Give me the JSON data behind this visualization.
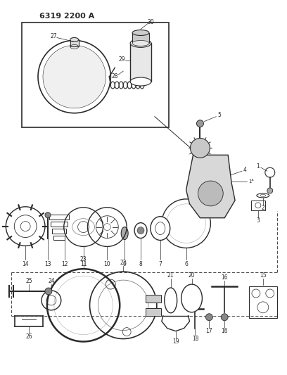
{
  "title": "6319 2200 A",
  "bg_color": "#ffffff",
  "line_color": "#2a2a2a",
  "figsize": [
    4.08,
    5.33
  ],
  "dpi": 100
}
